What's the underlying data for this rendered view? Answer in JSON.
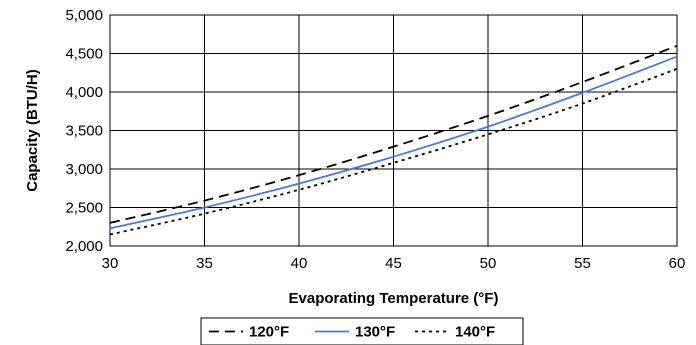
{
  "chart_data": {
    "type": "line",
    "xlabel": "Evaporating Temperature (°F)",
    "ylabel": "Capacity (BTU/H)",
    "xlim": [
      30,
      60
    ],
    "ylim": [
      2000,
      5000
    ],
    "xticks": [
      "30",
      "35",
      "40",
      "45",
      "50",
      "55",
      "60"
    ],
    "yticks": [
      "2,000",
      "2,500",
      "3,000",
      "3,500",
      "4,000",
      "4,500",
      "5,000"
    ],
    "grid": true,
    "legend_position": "bottom",
    "x": [
      30,
      35,
      40,
      45,
      50,
      55,
      60
    ],
    "series": [
      {
        "name": "120°F",
        "values": [
          2300,
          2590,
          2920,
          3290,
          3690,
          4130,
          4600
        ],
        "color": "#000000",
        "style": "dashed"
      },
      {
        "name": "130°F",
        "values": [
          2230,
          2500,
          2810,
          3160,
          3550,
          3990,
          4460
        ],
        "color": "#4a7bd8",
        "style": "solid"
      },
      {
        "name": "140°F",
        "values": [
          2150,
          2420,
          2730,
          3080,
          3450,
          3850,
          4300
        ],
        "color": "#000000",
        "style": "dotted"
      }
    ]
  }
}
